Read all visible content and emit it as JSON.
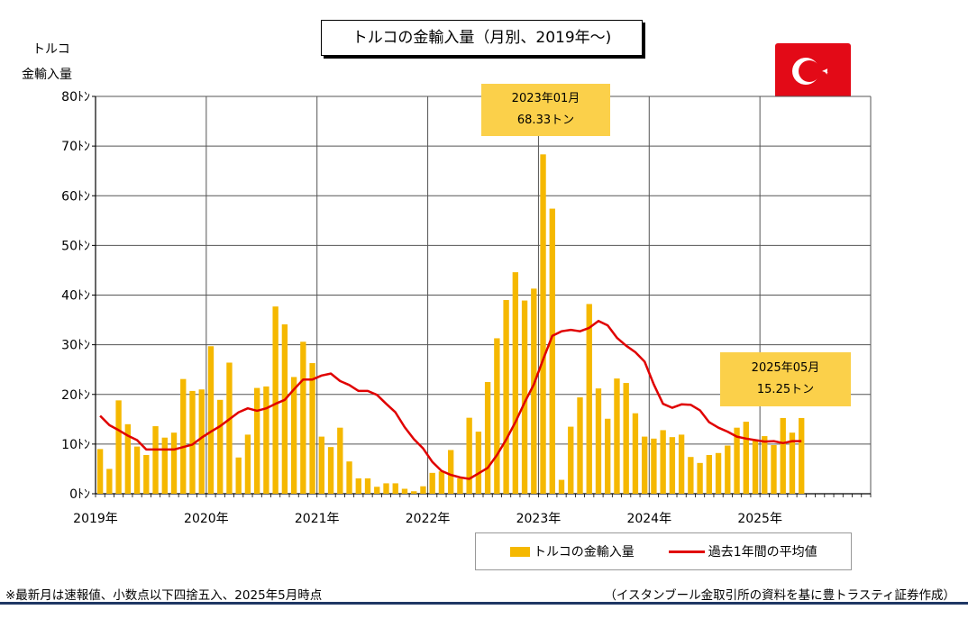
{
  "title": "トルコの金輸入量（月別、2019年〜)",
  "y_header": [
    "トルコ",
    "金輸入量"
  ],
  "y_ticks": [
    "0ﾄﾝ",
    "10ﾄﾝ",
    "20ﾄﾝ",
    "30ﾄﾝ",
    "40ﾄﾝ",
    "50ﾄﾝ",
    "60ﾄﾝ",
    "70ﾄﾝ",
    "80ﾄﾝ"
  ],
  "x_ticks": [
    "2019年",
    "2020年",
    "2021年",
    "2022年",
    "2023年",
    "2024年",
    "2025年"
  ],
  "callouts": {
    "peak": {
      "line1": "2023年01月",
      "line2": "68.33トン"
    },
    "latest": {
      "line1": "2025年05月",
      "line2": "15.25トン"
    }
  },
  "legend": {
    "bar_label": "トルコの金輸入量",
    "line_label": "過去1年間の平均値"
  },
  "footnote_left": "※最新月は速報値、小数点以下四捨五入、2025年5月時点",
  "footnote_right": "（イスタンブール金取引所の資料を基に豊トラスティ証券作成）",
  "colors": {
    "bar": "#f5b800",
    "line": "#e00000",
    "callout": "#fbd04a",
    "flag": "#e30a17",
    "rule": "#1f3764"
  },
  "chart_data": {
    "type": "bar",
    "title": "トルコの金輸入量（月別、2019年〜)",
    "ylabel": "トルコ 金輸入量",
    "ylim": [
      0,
      80
    ],
    "y_unit": "トン",
    "grid": true,
    "legend_position": "bottom-right",
    "x_start": "2019-01",
    "x_end": "2025-12",
    "categories": [
      "2019-01",
      "2019-02",
      "2019-03",
      "2019-04",
      "2019-05",
      "2019-06",
      "2019-07",
      "2019-08",
      "2019-09",
      "2019-10",
      "2019-11",
      "2019-12",
      "2020-01",
      "2020-02",
      "2020-03",
      "2020-04",
      "2020-05",
      "2020-06",
      "2020-07",
      "2020-08",
      "2020-09",
      "2020-10",
      "2020-11",
      "2020-12",
      "2021-01",
      "2021-02",
      "2021-03",
      "2021-04",
      "2021-05",
      "2021-06",
      "2021-07",
      "2021-08",
      "2021-09",
      "2021-10",
      "2021-11",
      "2021-12",
      "2022-01",
      "2022-02",
      "2022-03",
      "2022-04",
      "2022-05",
      "2022-06",
      "2022-07",
      "2022-08",
      "2022-09",
      "2022-10",
      "2022-11",
      "2022-12",
      "2023-01",
      "2023-02",
      "2023-03",
      "2023-04",
      "2023-05",
      "2023-06",
      "2023-07",
      "2023-08",
      "2023-09",
      "2023-10",
      "2023-11",
      "2023-12",
      "2024-01",
      "2024-02",
      "2024-03",
      "2024-04",
      "2024-05",
      "2024-06",
      "2024-07",
      "2024-08",
      "2024-09",
      "2024-10",
      "2024-11",
      "2024-12",
      "2025-01",
      "2025-02",
      "2025-03",
      "2025-04",
      "2025-05"
    ],
    "series": [
      {
        "name": "トルコの金輸入量",
        "type": "bar",
        "values": [
          9.0,
          5.0,
          18.8,
          14.0,
          9.5,
          7.8,
          13.6,
          11.3,
          12.3,
          23.1,
          20.7,
          21.0,
          29.7,
          18.9,
          26.4,
          7.3,
          11.9,
          21.3,
          21.6,
          37.7,
          34.1,
          23.5,
          30.6,
          26.3,
          11.5,
          9.4,
          13.3,
          6.5,
          3.1,
          3.1,
          1.4,
          2.1,
          2.1,
          1.0,
          0.5,
          1.5,
          4.2,
          4.5,
          8.8,
          3.1,
          15.3,
          12.5,
          22.5,
          31.3,
          39.0,
          44.6,
          38.9,
          41.3,
          68.33,
          57.4,
          2.8,
          13.5,
          19.4,
          38.2,
          21.2,
          15.1,
          23.2,
          22.3,
          16.2,
          11.5,
          11.1,
          12.8,
          11.4,
          11.9,
          7.4,
          6.2,
          7.8,
          8.2,
          9.7,
          13.3,
          14.5,
          10.9,
          11.6,
          9.8,
          15.25,
          12.3,
          15.25
        ]
      },
      {
        "name": "過去1年間の平均値",
        "type": "line",
        "values": [
          15.7,
          13.8,
          12.8,
          11.7,
          10.8,
          8.9,
          8.9,
          8.9,
          8.9,
          9.4,
          9.9,
          11.3,
          12.5,
          13.6,
          15.0,
          16.4,
          17.2,
          16.7,
          17.2,
          18.1,
          18.9,
          21.0,
          23.0,
          23.0,
          23.8,
          24.2,
          22.7,
          21.9,
          20.7,
          20.7,
          19.9,
          18.1,
          16.4,
          13.4,
          11.0,
          9.1,
          6.4,
          4.6,
          3.8,
          3.3,
          3.0,
          4.1,
          5.2,
          7.8,
          10.9,
          14.4,
          18.4,
          22.0,
          27.0,
          31.8,
          32.7,
          33.0,
          32.7,
          33.4,
          34.8,
          33.9,
          31.4,
          29.8,
          28.5,
          26.6,
          22.0,
          18.1,
          17.3,
          18.0,
          17.9,
          16.8,
          14.4,
          13.3,
          12.5,
          11.5,
          11.1,
          10.8,
          10.5,
          10.6,
          10.2,
          10.6,
          10.6
        ]
      }
    ]
  }
}
